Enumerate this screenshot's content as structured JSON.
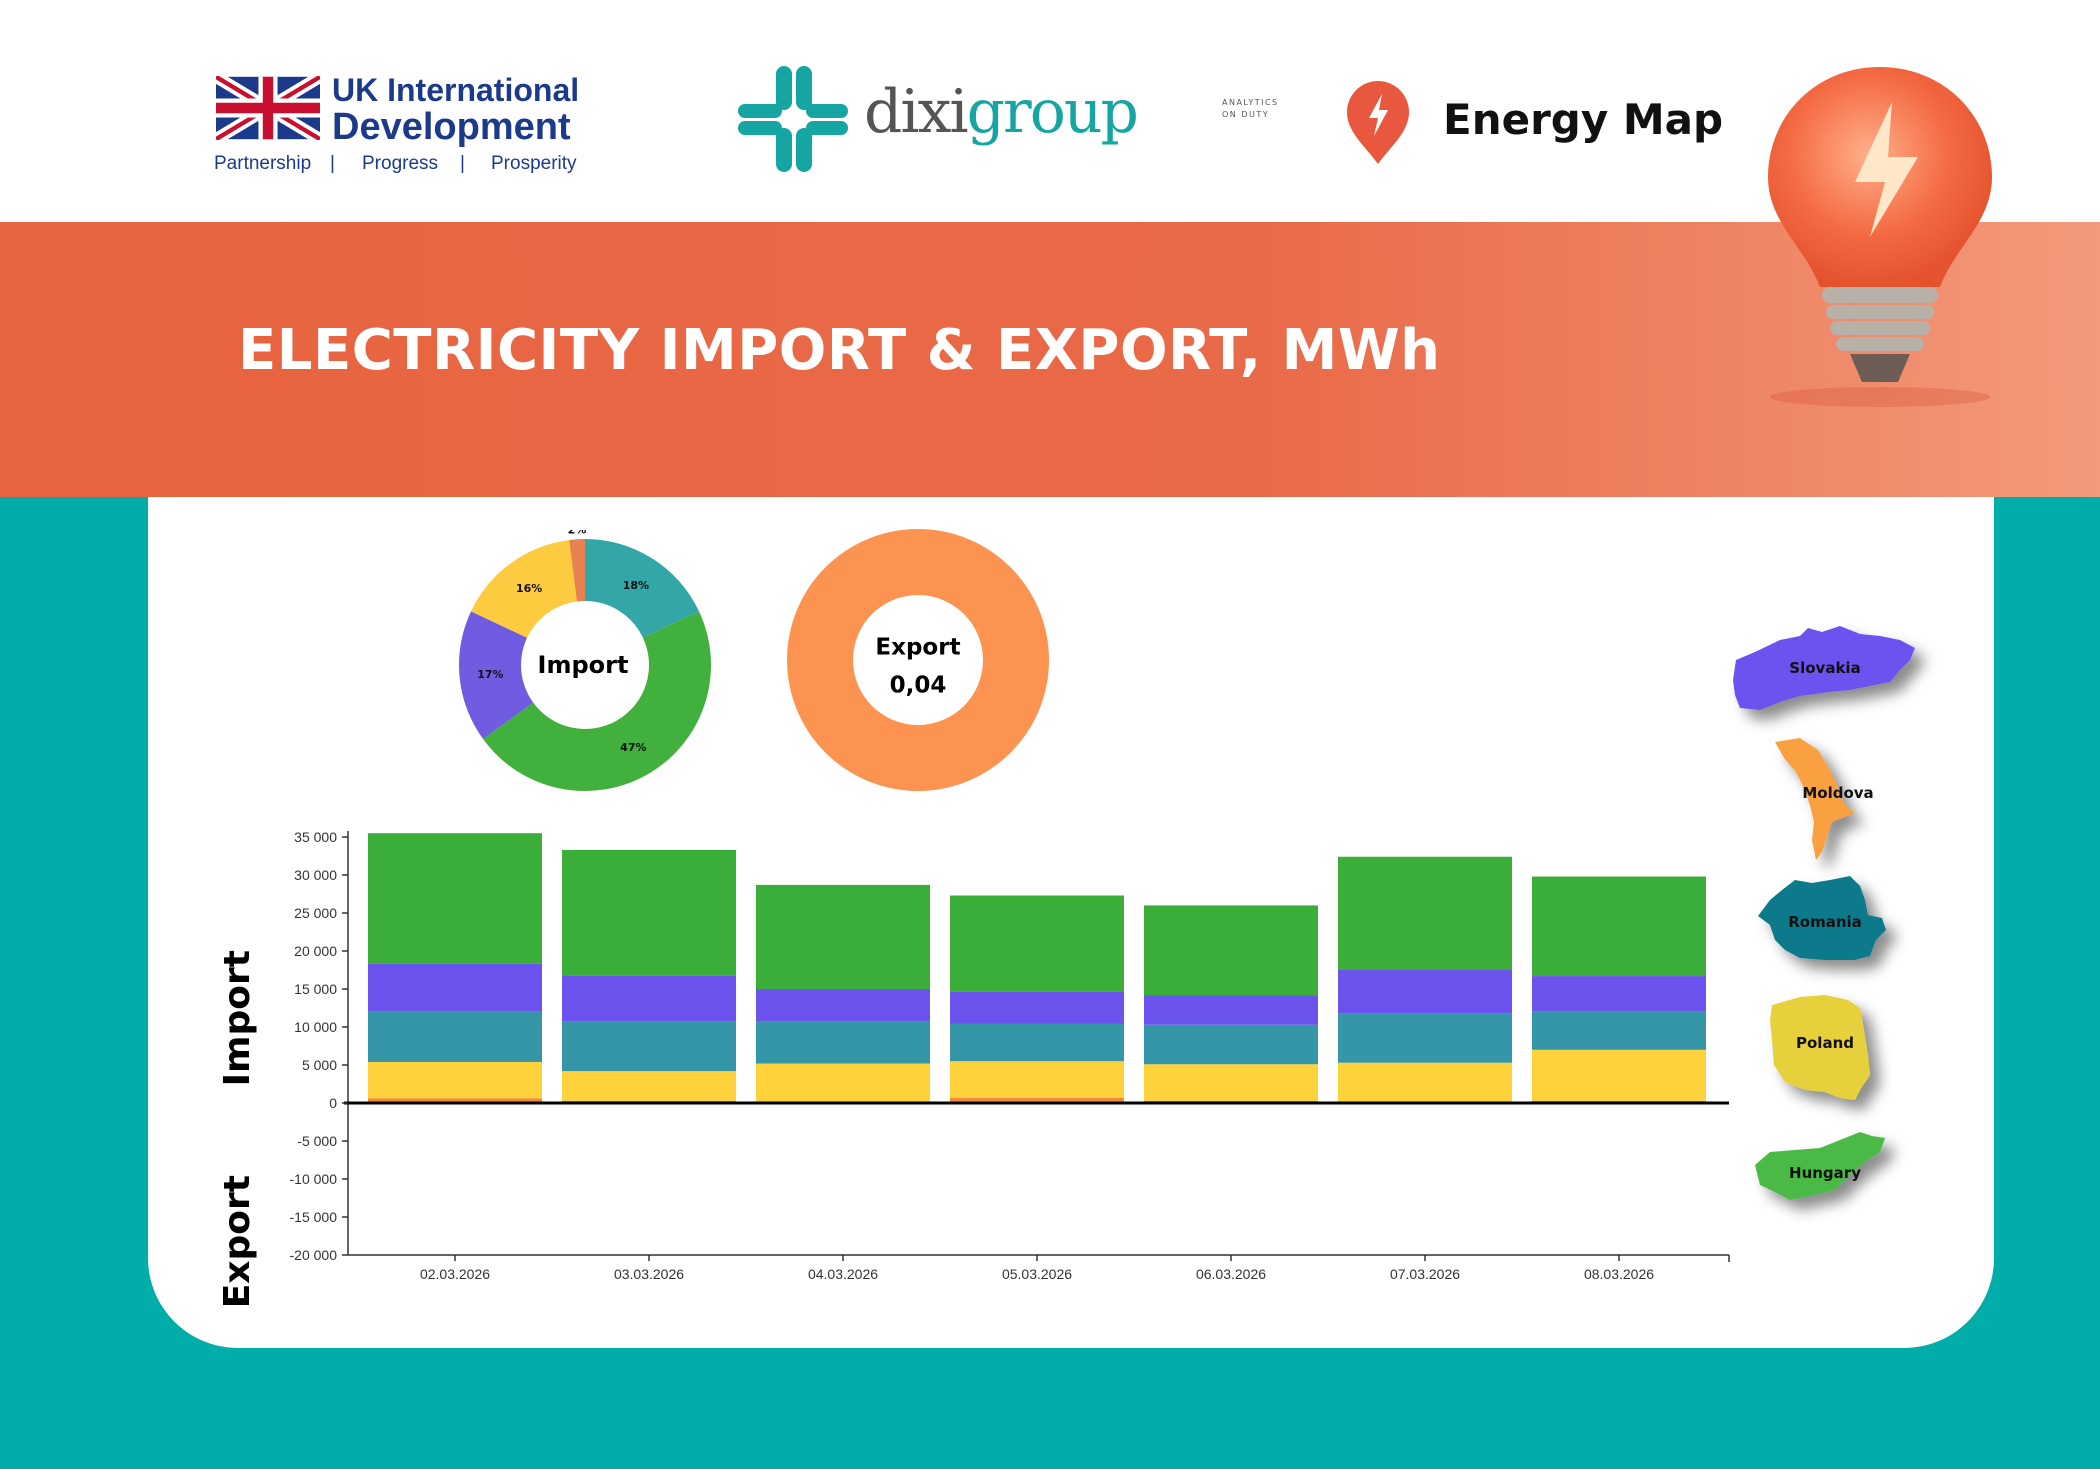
{
  "header": {
    "uk_logo": {
      "line1": "UK International",
      "line2": "Development",
      "tagline": [
        "Partnership",
        "|",
        "Progress",
        "|",
        "Prosperity"
      ]
    },
    "dixigroup_logo": {
      "name_part1": "dixi",
      "name_part2": "group",
      "sub1": "ANALYTICS",
      "sub2": "ON DUTY"
    },
    "energy_map": {
      "label": "Energy Map",
      "icon": "map-pin-lightning-icon"
    }
  },
  "banner": {
    "title": "ELECTRICITY IMPORT & EXPORT, MWh",
    "image": "light-bulb-icon"
  },
  "colors": {
    "background": "#00ADA9",
    "banner": "#E96746",
    "brand_teal": "#15A5A2"
  },
  "chart_data": [
    {
      "type": "pie",
      "center_label": "Import",
      "slices": [
        {
          "label": "18%",
          "value": 18,
          "color": "#33A6A8"
        },
        {
          "label": "47%",
          "value": 47,
          "color": "#41B03D"
        },
        {
          "label": "17%",
          "value": 17,
          "color": "#705CE0"
        },
        {
          "label": "16%",
          "value": 16,
          "color": "#FDCB3F"
        },
        {
          "label": "2%",
          "value": 2,
          "color": "#E8804F"
        }
      ]
    },
    {
      "type": "pie",
      "center_label": "Export",
      "center_value": "0,04",
      "slices": [
        {
          "value": 100,
          "color": "#FD9350"
        }
      ]
    },
    {
      "type": "bar",
      "stacked": true,
      "ylabel_top": "Import",
      "ylabel_bottom": "Export",
      "ylim": [
        -20000,
        35000
      ],
      "yticks": [
        35000,
        30000,
        25000,
        20000,
        15000,
        10000,
        5000,
        0,
        -5000,
        -10000,
        -15000,
        -20000
      ],
      "ytick_labels": [
        "35 000",
        "30 000",
        "25 000",
        "20 000",
        "15 000",
        "10 000",
        "5 000",
        "0",
        "-5 000",
        "-10 000",
        "-15 000",
        "-20 000"
      ],
      "categories": [
        "02.03.2026",
        "03.03.2026",
        "04.03.2026",
        "05.03.2026",
        "06.03.2026",
        "07.03.2026",
        "08.03.2026"
      ],
      "series": [
        {
          "name": "Moldova",
          "color": "#F0883E",
          "values": [
            600,
            300,
            100,
            700,
            300,
            200,
            300
          ]
        },
        {
          "name": "Poland",
          "color": "#FDD23A",
          "values": [
            4800,
            3900,
            5100,
            4800,
            4800,
            5100,
            6700
          ]
        },
        {
          "name": "Romania",
          "color": "#3496A6",
          "values": [
            6600,
            6500,
            5500,
            4900,
            5200,
            6500,
            5000
          ]
        },
        {
          "name": "Slovakia",
          "color": "#6B53EE",
          "values": [
            6300,
            6100,
            4300,
            4300,
            3900,
            5700,
            4700
          ]
        },
        {
          "name": "Hungary",
          "color": "#3AAE39",
          "values": [
            17200,
            16500,
            13700,
            12600,
            11800,
            14900,
            13100
          ]
        }
      ],
      "grid": false
    }
  ],
  "legend_maps": [
    {
      "name": "Slovakia",
      "color": "#6B53EE"
    },
    {
      "name": "Moldova",
      "color": "#F9A03F"
    },
    {
      "name": "Romania",
      "color": "#117A8B"
    },
    {
      "name": "Poland",
      "color": "#E6D03A"
    },
    {
      "name": "Hungary",
      "color": "#4CB944"
    }
  ]
}
